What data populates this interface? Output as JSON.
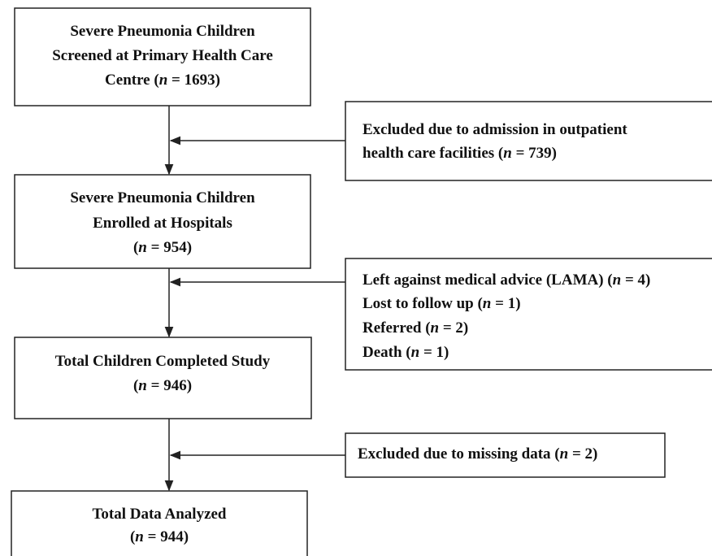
{
  "boxes": [
    {
      "lines": [
        "Severe Pneumonia Children",
        "Screened at Primary Health Care",
        "Centre (n = 1693)"
      ]
    },
    {
      "lines": [
        "Severe Pneumonia Children",
        "Enrolled at Hospitals",
        "(n = 954)"
      ]
    },
    {
      "lines": [
        "Total Children Completed Study",
        "(n = 946)"
      ]
    },
    {
      "lines": [
        "Total Data Analyzed",
        "(n = 944)"
      ]
    }
  ],
  "exclusions": [
    {
      "lines": [
        "Excluded due to admission in outpatient",
        "health care facilities (n = 739)"
      ]
    },
    {
      "lines": [
        "Left against medical advice (LAMA) (n = 4)",
        "Lost to follow up (n = 1)",
        "Referred (n = 2)",
        "Death (n = 1)"
      ]
    },
    {
      "lines": [
        "Excluded due to missing data (n = 2)"
      ]
    }
  ]
}
